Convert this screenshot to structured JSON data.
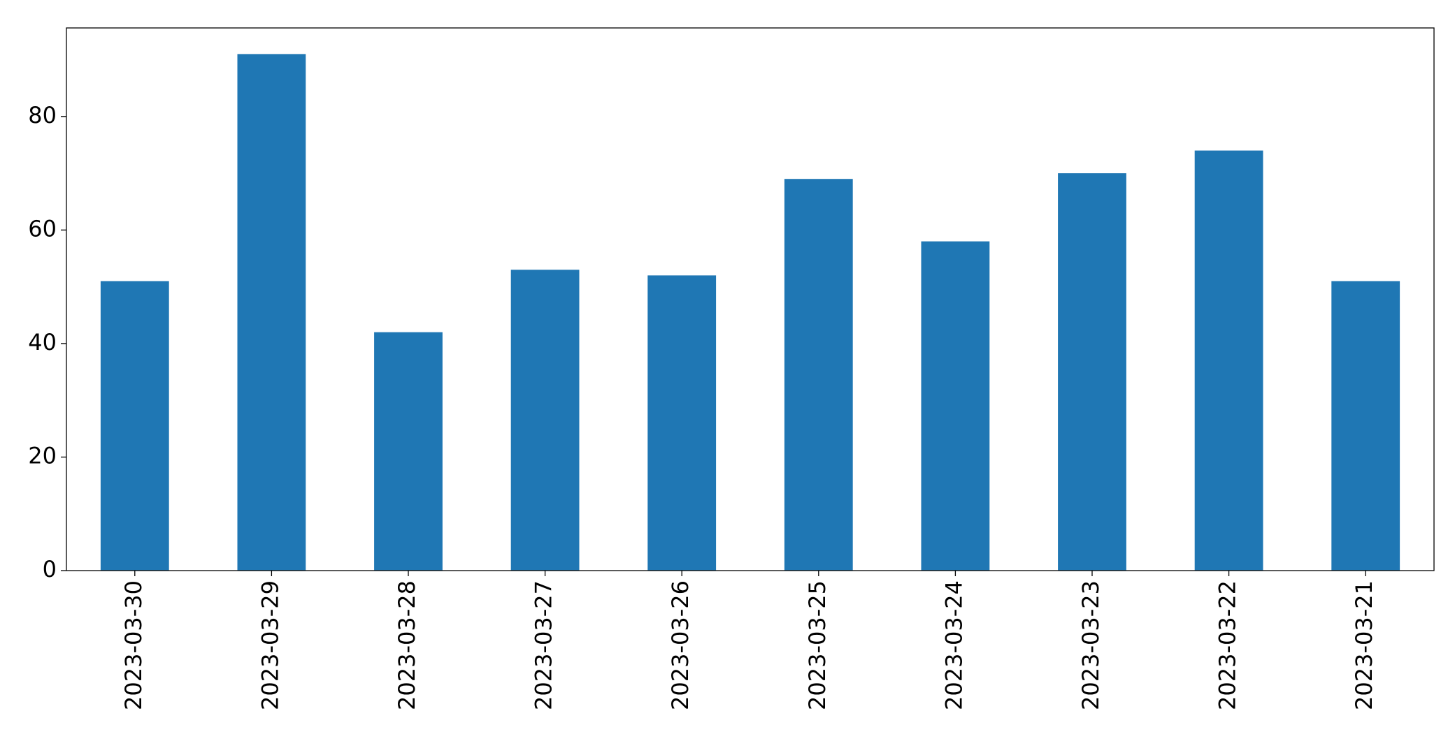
{
  "chart_data": {
    "type": "bar",
    "categories": [
      "2023-03-30",
      "2023-03-29",
      "2023-03-28",
      "2023-03-27",
      "2023-03-26",
      "2023-03-25",
      "2023-03-24",
      "2023-03-23",
      "2023-03-22",
      "2023-03-21"
    ],
    "values": [
      51,
      91,
      42,
      53,
      52,
      69,
      58,
      70,
      74,
      51
    ],
    "color": "#1f77b4",
    "ylim": [
      0,
      95.6
    ],
    "yticks": [
      0,
      20,
      40,
      60,
      80
    ],
    "grid": false
  }
}
